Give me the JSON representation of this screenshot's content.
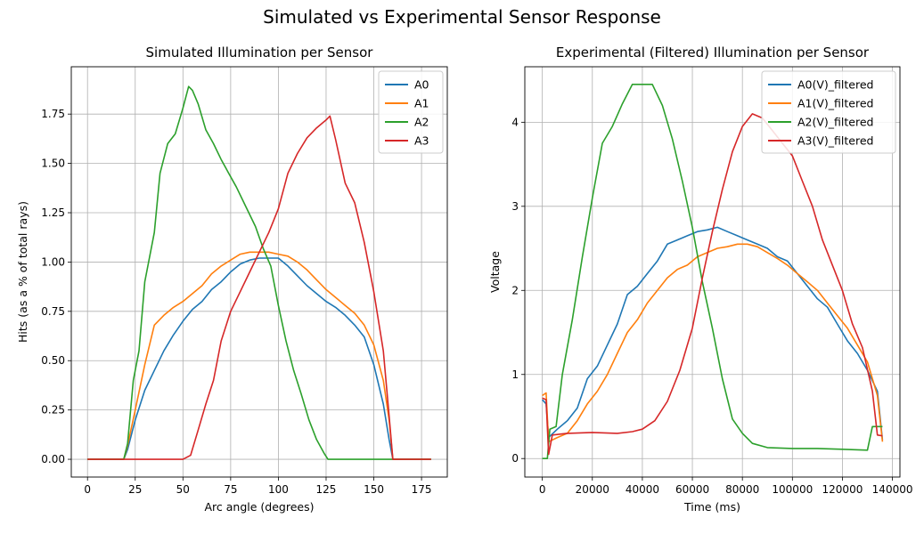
{
  "figure": {
    "suptitle": "Simulated vs Experimental Sensor Response"
  },
  "colors": {
    "A0": "#1f77b4",
    "A1": "#ff7f0e",
    "A2": "#2ca02c",
    "A3": "#d62728"
  },
  "chart_data": [
    {
      "type": "line",
      "title": "Simulated Illumination per Sensor",
      "xlabel": "Arc angle (degrees)",
      "ylabel": "Hits (as a % of total rays)",
      "xlim": [
        -8.5,
        188.5
      ],
      "ylim": [
        -0.09,
        1.99
      ],
      "xticks": [
        0,
        25,
        50,
        75,
        100,
        125,
        150,
        175
      ],
      "yticks": [
        0.0,
        0.25,
        0.5,
        0.75,
        1.0,
        1.25,
        1.5,
        1.75
      ],
      "ytick_labels": [
        "0.00",
        "0.25",
        "0.50",
        "0.75",
        "1.00",
        "1.25",
        "1.50",
        "1.75"
      ],
      "grid": true,
      "legend": "top-right",
      "series": [
        {
          "name": "A0",
          "x": [
            0,
            19,
            21,
            25,
            30,
            35,
            40,
            45,
            50,
            55,
            60,
            65,
            70,
            75,
            80,
            85,
            90,
            95,
            100,
            105,
            110,
            115,
            120,
            125,
            130,
            135,
            140,
            145,
            150,
            155,
            158,
            160,
            170,
            180
          ],
          "y": [
            0,
            0,
            0.05,
            0.2,
            0.35,
            0.45,
            0.55,
            0.63,
            0.7,
            0.76,
            0.8,
            0.86,
            0.9,
            0.95,
            0.99,
            1.01,
            1.02,
            1.02,
            1.02,
            0.98,
            0.93,
            0.88,
            0.84,
            0.8,
            0.77,
            0.73,
            0.68,
            0.62,
            0.48,
            0.28,
            0.1,
            0,
            0,
            0
          ]
        },
        {
          "name": "A1",
          "x": [
            0,
            19,
            21,
            25,
            30,
            35,
            40,
            45,
            50,
            55,
            60,
            65,
            70,
            75,
            80,
            85,
            90,
            95,
            100,
            105,
            110,
            115,
            120,
            125,
            130,
            135,
            140,
            145,
            150,
            155,
            158,
            160,
            170,
            180
          ],
          "y": [
            0,
            0,
            0.07,
            0.25,
            0.48,
            0.68,
            0.73,
            0.77,
            0.8,
            0.84,
            0.88,
            0.94,
            0.98,
            1.01,
            1.04,
            1.05,
            1.05,
            1.05,
            1.04,
            1.03,
            1.0,
            0.96,
            0.91,
            0.86,
            0.82,
            0.78,
            0.74,
            0.68,
            0.58,
            0.4,
            0.2,
            0,
            0,
            0
          ]
        },
        {
          "name": "A2",
          "x": [
            0,
            19,
            21,
            24,
            27,
            30,
            35,
            38,
            42,
            46,
            50,
            53,
            55,
            58,
            62,
            66,
            70,
            74,
            78,
            83,
            88,
            92,
            96,
            100,
            104,
            108,
            112,
            116,
            120,
            124,
            126,
            130,
            140,
            150,
            160,
            180
          ],
          "y": [
            0,
            0,
            0.08,
            0.4,
            0.55,
            0.9,
            1.15,
            1.45,
            1.6,
            1.65,
            1.78,
            1.89,
            1.87,
            1.8,
            1.67,
            1.6,
            1.52,
            1.45,
            1.38,
            1.28,
            1.18,
            1.07,
            0.98,
            0.78,
            0.6,
            0.45,
            0.33,
            0.2,
            0.1,
            0.03,
            0,
            0,
            0,
            0,
            0,
            0
          ]
        },
        {
          "name": "A3",
          "x": [
            0,
            50,
            54,
            58,
            62,
            66,
            70,
            75,
            80,
            85,
            90,
            95,
            100,
            105,
            110,
            115,
            120,
            125,
            127,
            130,
            135,
            140,
            145,
            150,
            155,
            158,
            160,
            170,
            180
          ],
          "y": [
            0,
            0,
            0.02,
            0.15,
            0.28,
            0.4,
            0.6,
            0.75,
            0.85,
            0.95,
            1.05,
            1.15,
            1.27,
            1.45,
            1.55,
            1.63,
            1.68,
            1.72,
            1.74,
            1.62,
            1.4,
            1.3,
            1.1,
            0.85,
            0.55,
            0.22,
            0,
            0,
            0
          ]
        }
      ]
    },
    {
      "type": "line",
      "title": "Experimental (Filtered) Illumination per Sensor",
      "xlabel": "Time (ms)",
      "ylabel": "Voltage",
      "xlim": [
        -7000,
        143000
      ],
      "ylim": [
        -0.22,
        4.66
      ],
      "xticks": [
        0,
        20000,
        40000,
        60000,
        80000,
        100000,
        120000,
        140000
      ],
      "yticks": [
        0,
        1,
        2,
        3,
        4
      ],
      "grid": true,
      "legend": "top-right",
      "series": [
        {
          "name": "A0(V)_filtered",
          "x": [
            0,
            1500,
            2500,
            6000,
            10000,
            14000,
            18000,
            22000,
            26000,
            30000,
            34000,
            38000,
            42000,
            46000,
            50000,
            54000,
            58000,
            62000,
            66000,
            70000,
            74000,
            78000,
            82000,
            86000,
            90000,
            94000,
            98000,
            102000,
            106000,
            110000,
            114000,
            118000,
            122000,
            126000,
            130000,
            134000,
            136000
          ],
          "y": [
            0.7,
            0.65,
            0.25,
            0.35,
            0.45,
            0.6,
            0.95,
            1.1,
            1.35,
            1.6,
            1.95,
            2.05,
            2.2,
            2.35,
            2.55,
            2.6,
            2.65,
            2.7,
            2.72,
            2.75,
            2.7,
            2.65,
            2.6,
            2.55,
            2.5,
            2.4,
            2.35,
            2.2,
            2.05,
            1.9,
            1.8,
            1.6,
            1.4,
            1.25,
            1.05,
            0.8,
            0.22
          ]
        },
        {
          "name": "A1(V)_filtered",
          "x": [
            0,
            1500,
            2500,
            6000,
            10000,
            14000,
            18000,
            22000,
            26000,
            30000,
            34000,
            38000,
            42000,
            46000,
            50000,
            54000,
            58000,
            62000,
            66000,
            70000,
            74000,
            78000,
            82000,
            86000,
            90000,
            94000,
            98000,
            102000,
            106000,
            110000,
            114000,
            118000,
            122000,
            126000,
            130000,
            134000,
            136000
          ],
          "y": [
            0.75,
            0.78,
            0.2,
            0.25,
            0.3,
            0.45,
            0.65,
            0.8,
            1.0,
            1.25,
            1.5,
            1.65,
            1.85,
            2.0,
            2.15,
            2.25,
            2.3,
            2.4,
            2.45,
            2.5,
            2.52,
            2.55,
            2.55,
            2.52,
            2.45,
            2.38,
            2.3,
            2.2,
            2.1,
            2.0,
            1.85,
            1.7,
            1.55,
            1.35,
            1.15,
            0.75,
            0.2
          ]
        },
        {
          "name": "A2(V)_filtered",
          "x": [
            0,
            2000,
            3000,
            5500,
            8000,
            12000,
            16000,
            20000,
            24000,
            28000,
            32000,
            36000,
            40000,
            44000,
            48000,
            52000,
            56000,
            60000,
            64000,
            68000,
            72000,
            76000,
            80000,
            84000,
            90000,
            100000,
            110000,
            120000,
            130000,
            132000,
            136000
          ],
          "y": [
            0,
            0,
            0.35,
            0.38,
            1.0,
            1.65,
            2.4,
            3.1,
            3.75,
            3.95,
            4.22,
            4.45,
            4.45,
            4.45,
            4.2,
            3.8,
            3.3,
            2.75,
            2.1,
            1.55,
            0.95,
            0.47,
            0.3,
            0.18,
            0.13,
            0.12,
            0.12,
            0.11,
            0.1,
            0.38,
            0.38
          ]
        },
        {
          "name": "A3(V)_filtered",
          "x": [
            0,
            1500,
            2500,
            4000,
            10000,
            20000,
            30000,
            36000,
            40000,
            45000,
            50000,
            55000,
            60000,
            64000,
            68000,
            72000,
            76000,
            80000,
            84000,
            88000,
            92000,
            96000,
            100000,
            104000,
            108000,
            112000,
            116000,
            120000,
            124000,
            128000,
            132000,
            134000,
            136000
          ],
          "y": [
            0.72,
            0.7,
            0.05,
            0.28,
            0.3,
            0.31,
            0.3,
            0.32,
            0.35,
            0.45,
            0.68,
            1.05,
            1.55,
            2.15,
            2.7,
            3.2,
            3.65,
            3.95,
            4.1,
            4.05,
            3.9,
            3.75,
            3.6,
            3.3,
            3.0,
            2.6,
            2.3,
            2.0,
            1.6,
            1.32,
            0.8,
            0.28,
            0.27
          ]
        }
      ]
    }
  ]
}
